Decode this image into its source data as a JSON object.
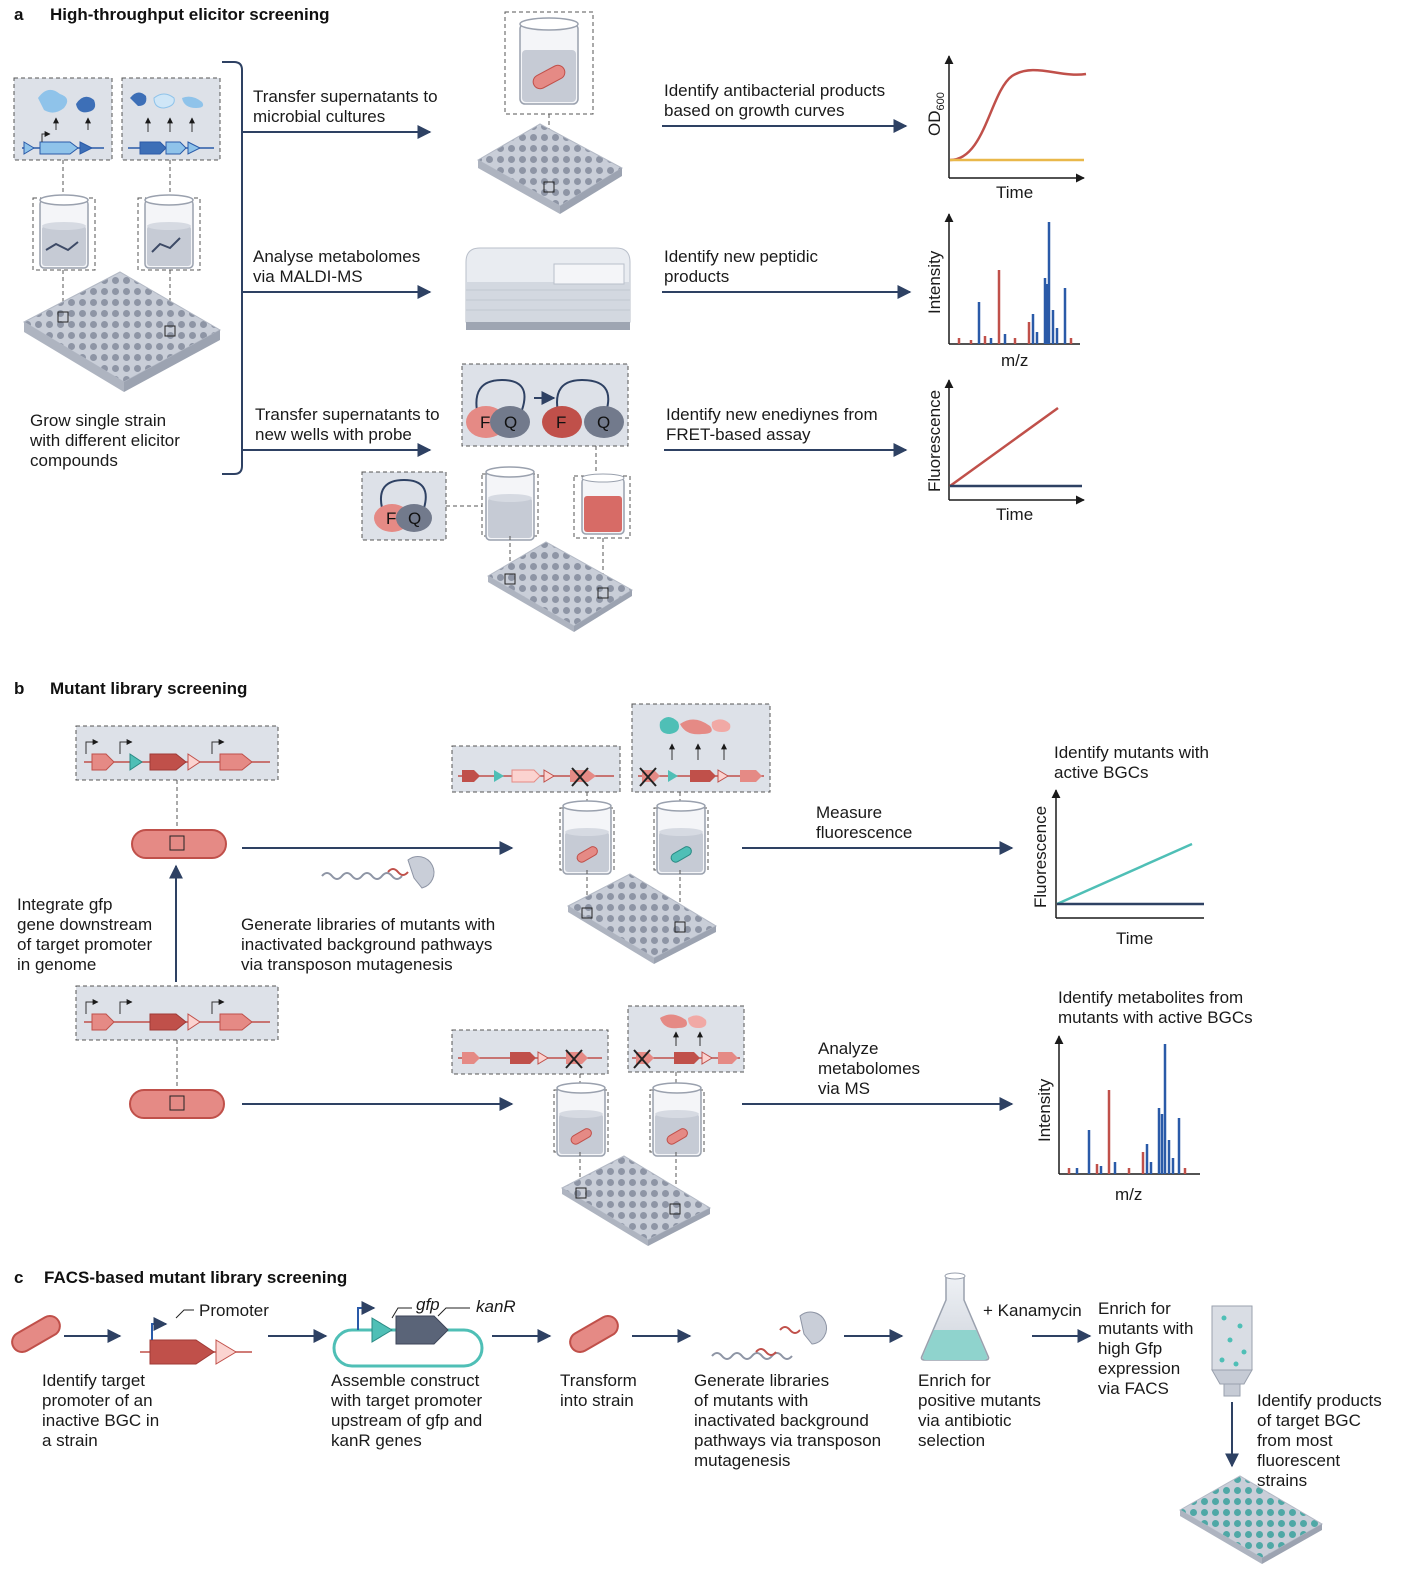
{
  "sections": {
    "a": {
      "letter": "a",
      "title": "High-throughput elicitor screening"
    },
    "b": {
      "letter": "b",
      "title": "Mutant library screening"
    },
    "c": {
      "letter": "c",
      "title": "FACS-based mutant library screening"
    }
  },
  "a": {
    "grow": [
      "Grow single strain",
      "with different elicitor",
      "compounds"
    ],
    "transfer1": [
      "Transfer supernatants to",
      "microbial cultures"
    ],
    "analyse": [
      "Analyse metabolomes",
      "via MALDI-MS"
    ],
    "transfer2": [
      "Transfer supernatants to",
      "new wells with probe"
    ],
    "identify1": [
      "Identify antibacterial products",
      "based on growth curves"
    ],
    "identify2": [
      "Identify new peptidic",
      "products"
    ],
    "identify3": [
      "Identify new enediynes from",
      "FRET-based assay"
    ],
    "fq": {
      "f": "F",
      "q": "Q"
    },
    "plot1": {
      "ylabel": "OD",
      "ysub": "600",
      "xlabel": "Time"
    },
    "plot2": {
      "ylabel": "Intensity",
      "xlabel": "m/z"
    },
    "plot3": {
      "ylabel": "Fluorescence",
      "xlabel": "Time"
    }
  },
  "b": {
    "integrate": [
      "Integrate gfp",
      "gene downstream",
      "of target promoter",
      "in genome"
    ],
    "generate": [
      "Generate libraries of mutants with",
      "inactivated background pathways",
      "via transposon mutagenesis"
    ],
    "measure": [
      "Measure",
      "fluorescence"
    ],
    "analyze": [
      "Analyze",
      "metabolomes",
      "via MS"
    ],
    "identify1": [
      "Identify mutants with",
      "active BGCs"
    ],
    "identify2": [
      "Identify metabolites from",
      "mutants with active BGCs"
    ],
    "plot1": {
      "ylabel": "Fluorescence",
      "xlabel": "Time"
    },
    "plot2": {
      "ylabel": "Intensity",
      "xlabel": "m/z"
    }
  },
  "c": {
    "promoter": "Promoter",
    "gfp": "gfp",
    "kanR": "kanR",
    "kanamycin": "+ Kanamycin",
    "step1": [
      "Identify target",
      "promoter of an",
      "inactive BGC in",
      "a strain"
    ],
    "step2": [
      "Assemble construct",
      "with target promoter",
      "upstream of gfp and",
      "kanR genes"
    ],
    "step3": [
      "Transform",
      "into strain"
    ],
    "step4": [
      "Generate libraries",
      "of mutants with",
      "inactivated background",
      "pathways via transposon",
      "mutagenesis"
    ],
    "step5": [
      "Enrich for",
      "positive mutants",
      "via antibiotic",
      "selection"
    ],
    "step6": [
      "Enrich for",
      "mutants with",
      "high Gfp",
      "expression",
      "via FACS"
    ],
    "step7": [
      "Identify products",
      "of target BGC",
      "from most",
      "fluorescent",
      "strains"
    ]
  },
  "colors": {
    "navy": "#2e4163",
    "red": "#c0504a",
    "pink": "#e58a85",
    "teal": "#4fbfb6",
    "blue": "#2a5aa8",
    "lightblue": "#8fc3ea",
    "panel": "#dde1e8",
    "yellow": "#e9b84a"
  }
}
